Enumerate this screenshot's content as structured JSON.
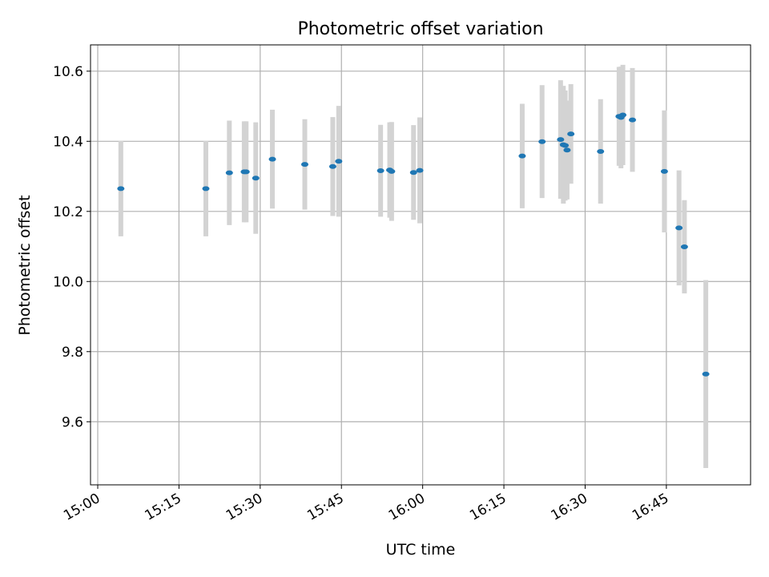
{
  "chart_data": {
    "type": "scatter",
    "title": "Photometric offset variation",
    "xlabel": "UTC time",
    "ylabel": "Photometric offset",
    "x_unit": "UTC time (HH:MM)",
    "xlim": [
      "14:58:40",
      "17:00:33"
    ],
    "ylim": [
      9.42,
      10.675
    ],
    "x_ticks": [
      "15:00",
      "15:15",
      "15:30",
      "15:45",
      "16:00",
      "16:15",
      "16:30",
      "16:45"
    ],
    "y_ticks": [
      9.6,
      9.8,
      10.0,
      10.2,
      10.4,
      10.6
    ],
    "y_tick_labels": [
      "9.6",
      "9.8",
      "10.0",
      "10.2",
      "10.4",
      "10.6"
    ],
    "grid": true,
    "colors": {
      "points": "#1f77b4",
      "errorbars": "#d3d3d3",
      "grid": "#b0b0b0"
    },
    "points": [
      {
        "x": "15:04:16",
        "y": 10.265,
        "yerr": 0.136
      },
      {
        "x": "15:19:58",
        "y": 10.265,
        "yerr": 0.136
      },
      {
        "x": "15:24:18",
        "y": 10.31,
        "yerr": 0.149
      },
      {
        "x": "15:27:03",
        "y": 10.313,
        "yerr": 0.144
      },
      {
        "x": "15:27:24",
        "y": 10.313,
        "yerr": 0.144
      },
      {
        "x": "15:29:11",
        "y": 10.295,
        "yerr": 0.159
      },
      {
        "x": "15:32:15",
        "y": 10.349,
        "yerr": 0.141
      },
      {
        "x": "15:38:14",
        "y": 10.334,
        "yerr": 0.129
      },
      {
        "x": "15:43:24",
        "y": 10.328,
        "yerr": 0.141
      },
      {
        "x": "15:44:30",
        "y": 10.343,
        "yerr": 0.158
      },
      {
        "x": "15:52:14",
        "y": 10.316,
        "yerr": 0.131
      },
      {
        "x": "15:53:55",
        "y": 10.318,
        "yerr": 0.136
      },
      {
        "x": "15:54:16",
        "y": 10.314,
        "yerr": 0.141
      },
      {
        "x": "15:58:19",
        "y": 10.311,
        "yerr": 0.135
      },
      {
        "x": "15:59:28",
        "y": 10.317,
        "yerr": 0.151
      },
      {
        "x": "16:18:23",
        "y": 10.358,
        "yerr": 0.149
      },
      {
        "x": "16:22:03",
        "y": 10.399,
        "yerr": 0.161
      },
      {
        "x": "16:25:28",
        "y": 10.405,
        "yerr": 0.169
      },
      {
        "x": "16:25:59",
        "y": 10.39,
        "yerr": 0.168
      },
      {
        "x": "16:26:19",
        "y": 10.388,
        "yerr": 0.157
      },
      {
        "x": "16:26:40",
        "y": 10.375,
        "yerr": 0.141
      },
      {
        "x": "16:27:22",
        "y": 10.421,
        "yerr": 0.142
      },
      {
        "x": "16:32:51",
        "y": 10.371,
        "yerr": 0.149
      },
      {
        "x": "16:36:16",
        "y": 10.471,
        "yerr": 0.141
      },
      {
        "x": "16:36:37",
        "y": 10.468,
        "yerr": 0.145
      },
      {
        "x": "16:36:58",
        "y": 10.475,
        "yerr": 0.143
      },
      {
        "x": "16:38:44",
        "y": 10.461,
        "yerr": 0.148
      },
      {
        "x": "16:44:38",
        "y": 10.314,
        "yerr": 0.174
      },
      {
        "x": "16:47:20",
        "y": 10.153,
        "yerr": 0.164
      },
      {
        "x": "16:48:20",
        "y": 10.099,
        "yerr": 0.133
      },
      {
        "x": "16:52:17",
        "y": 9.736,
        "yerr": 0.268
      }
    ]
  }
}
